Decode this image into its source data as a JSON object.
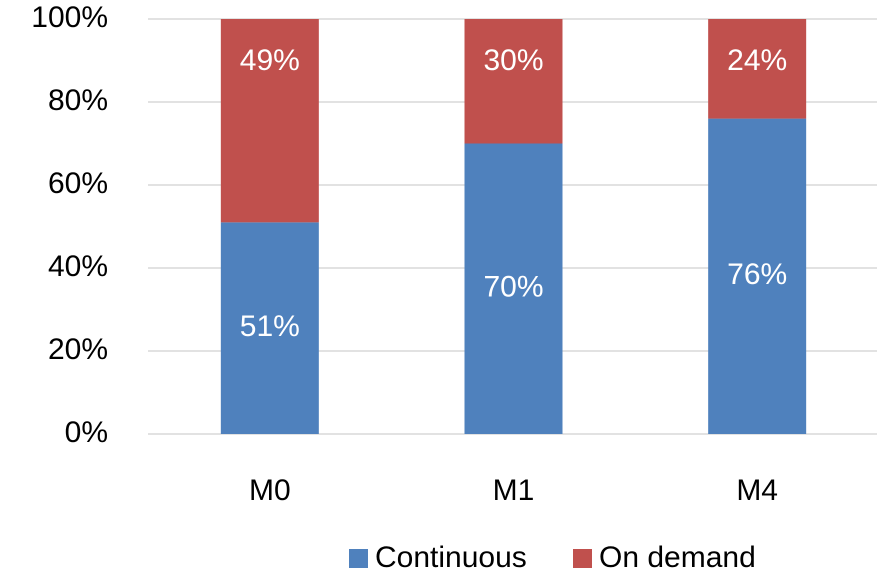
{
  "chart_data": {
    "type": "stacked_bar",
    "categories": [
      "M0",
      "M1",
      "M4"
    ],
    "series": [
      {
        "name": "Continuous",
        "color": "#4f81bd",
        "values": [
          51,
          70,
          76
        ],
        "value_labels": [
          "51%",
          "70%",
          "76%"
        ]
      },
      {
        "name": "On demand",
        "color": "#c0504d",
        "values": [
          49,
          30,
          24
        ],
        "value_labels": [
          "49%",
          "30%",
          "24%"
        ]
      }
    ],
    "ylim": [
      0,
      100
    ],
    "yticks": [
      {
        "value": 0,
        "label": "0%"
      },
      {
        "value": 20,
        "label": "20%"
      },
      {
        "value": 40,
        "label": "40%"
      },
      {
        "value": 60,
        "label": "60%"
      },
      {
        "value": 80,
        "label": "80%"
      },
      {
        "value": 100,
        "label": "100%"
      }
    ],
    "grid": true,
    "legend": "bottom"
  }
}
